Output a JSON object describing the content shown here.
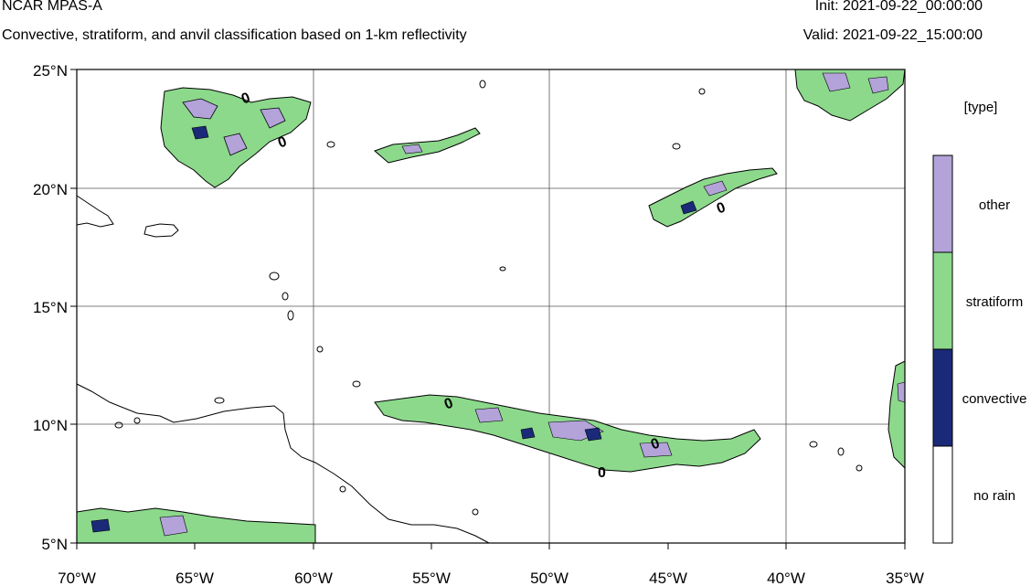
{
  "header": {
    "model_name": "NCAR MPAS-A",
    "description": "Convective, stratiform, and anvil classification based on 1-km reflectivity",
    "init": "Init: 2021-09-22_00:00:00",
    "valid": "Valid: 2021-09-22_15:00:00"
  },
  "map": {
    "lat_range": [
      5,
      25
    ],
    "lon_range": [
      -70,
      -35
    ],
    "lat_ticks": [
      "5°N",
      "10°N",
      "15°N",
      "20°N",
      "25°N"
    ],
    "lon_ticks": [
      "70°W",
      "65°W",
      "60°W",
      "55°W",
      "50°W",
      "45°W",
      "40°W",
      "35°W"
    ],
    "gridlines": true,
    "contour_labels": [
      "0",
      "0",
      "0",
      "0",
      "0",
      "0"
    ]
  },
  "legend": {
    "title": "[type]",
    "categories": [
      {
        "label": "other",
        "color": "#b3a3d9"
      },
      {
        "label": "stratiform",
        "color": "#8cd98c"
      },
      {
        "label": "convective",
        "color": "#1a2a78"
      },
      {
        "label": "no rain",
        "color": "#ffffff"
      }
    ]
  }
}
